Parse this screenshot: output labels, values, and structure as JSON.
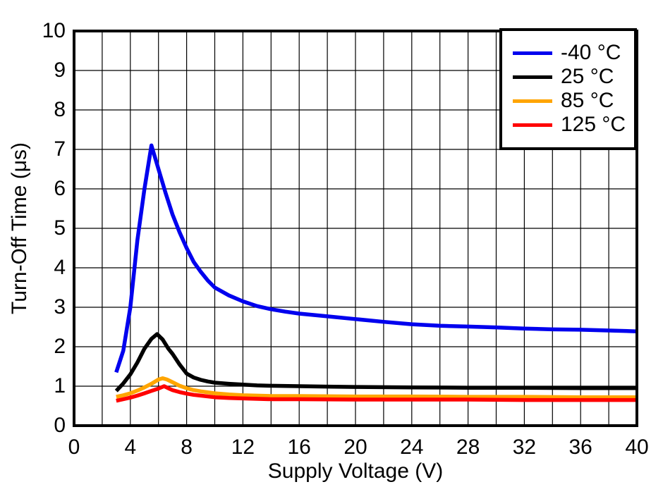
{
  "chart_data": {
    "type": "line",
    "title": "",
    "xlabel": "Supply Voltage (V)",
    "ylabel": "Turn-Off Time (μs)",
    "xlim": [
      0,
      40
    ],
    "ylim": [
      0,
      10
    ],
    "x_ticks": [
      0,
      4,
      8,
      12,
      16,
      20,
      24,
      28,
      32,
      36,
      40
    ],
    "y_ticks": [
      0,
      1,
      2,
      3,
      4,
      5,
      6,
      7,
      8,
      9,
      10
    ],
    "x_grid_step": 2,
    "y_grid_step": 1,
    "grid": true,
    "legend_position": "top-right",
    "axis_color": "#000000",
    "series": [
      {
        "name": "-40 °C",
        "color": "#0000EE",
        "x": [
          3,
          3.5,
          4,
          4.5,
          5,
          5.5,
          6,
          6.5,
          7,
          7.5,
          8,
          8.5,
          9,
          9.5,
          10,
          11,
          12,
          13,
          14,
          15,
          16,
          18,
          20,
          22,
          24,
          26,
          28,
          30,
          32,
          34,
          36,
          38,
          40
        ],
        "y": [
          1.35,
          1.9,
          3.0,
          4.7,
          6.0,
          7.1,
          6.5,
          5.9,
          5.35,
          4.9,
          4.5,
          4.15,
          3.9,
          3.68,
          3.5,
          3.3,
          3.15,
          3.03,
          2.95,
          2.89,
          2.84,
          2.77,
          2.7,
          2.63,
          2.57,
          2.53,
          2.51,
          2.49,
          2.46,
          2.44,
          2.43,
          2.41,
          2.39
        ]
      },
      {
        "name": "25 °C",
        "color": "#000000",
        "x": [
          3,
          3.5,
          4,
          4.5,
          5,
          5.5,
          5.9,
          6.3,
          6.7,
          7,
          7.5,
          8,
          8.5,
          9,
          9.5,
          10,
          11,
          12,
          13,
          14,
          16,
          18,
          20,
          24,
          28,
          32,
          36,
          40
        ],
        "y": [
          0.88,
          1.07,
          1.3,
          1.6,
          1.95,
          2.2,
          2.32,
          2.18,
          1.95,
          1.82,
          1.55,
          1.32,
          1.22,
          1.16,
          1.12,
          1.09,
          1.06,
          1.04,
          1.02,
          1.01,
          1.0,
          0.99,
          0.98,
          0.97,
          0.96,
          0.96,
          0.95,
          0.95
        ]
      },
      {
        "name": "85 °C",
        "color": "#FFA500",
        "x": [
          3,
          3.5,
          4,
          4.5,
          5,
          5.5,
          6,
          6.3,
          6.6,
          7,
          7.5,
          8,
          8.5,
          9,
          10,
          11,
          12,
          14,
          16,
          20,
          24,
          28,
          32,
          36,
          40
        ],
        "y": [
          0.73,
          0.77,
          0.82,
          0.89,
          0.97,
          1.06,
          1.17,
          1.2,
          1.17,
          1.1,
          1.01,
          0.95,
          0.9,
          0.87,
          0.82,
          0.79,
          0.77,
          0.75,
          0.75,
          0.74,
          0.74,
          0.73,
          0.73,
          0.72,
          0.72
        ]
      },
      {
        "name": "125 °C",
        "color": "#FF0000",
        "x": [
          3,
          3.5,
          4,
          4.5,
          5,
          5.5,
          6,
          6.4,
          6.8,
          7,
          7.5,
          8,
          8.5,
          9,
          10,
          11,
          12,
          14,
          16,
          20,
          24,
          28,
          32,
          36,
          40
        ],
        "y": [
          0.63,
          0.67,
          0.71,
          0.76,
          0.82,
          0.88,
          0.94,
          1.0,
          0.93,
          0.9,
          0.85,
          0.81,
          0.78,
          0.76,
          0.72,
          0.7,
          0.69,
          0.67,
          0.67,
          0.66,
          0.66,
          0.66,
          0.65,
          0.65,
          0.65
        ]
      }
    ]
  }
}
